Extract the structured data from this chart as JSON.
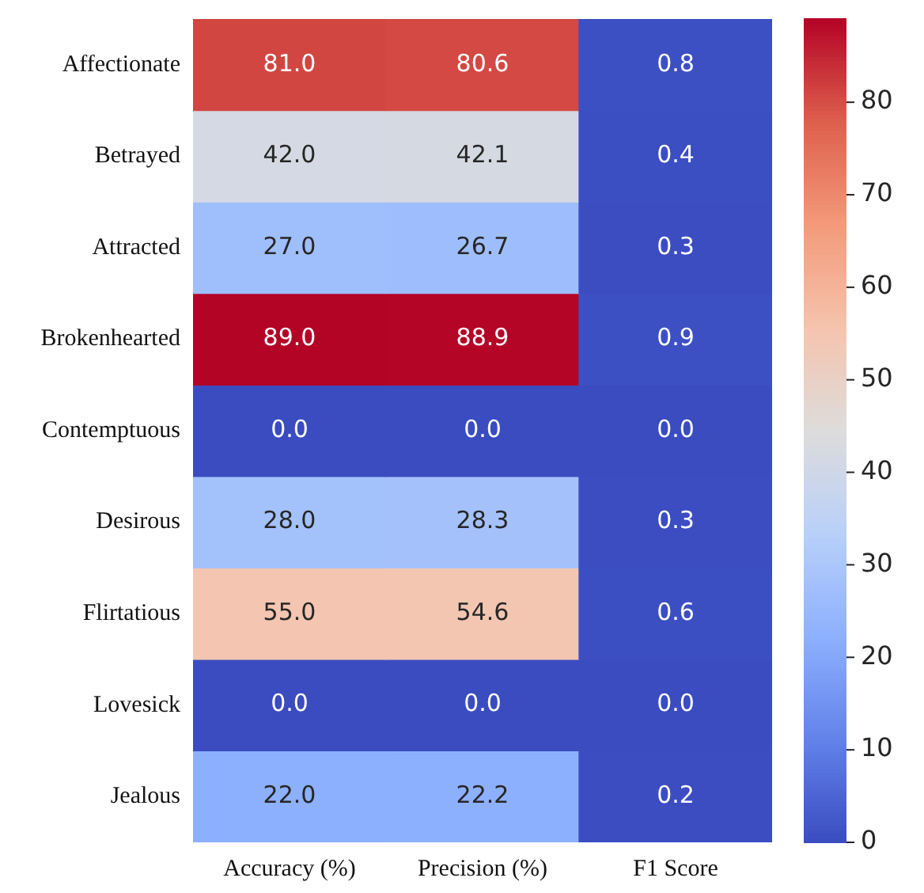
{
  "chart_data": {
    "type": "heatmap",
    "categories": [
      "Accuracy (%)",
      "Precision (%)",
      "F1 Score"
    ],
    "y_categories": [
      "Affectionate",
      "Betrayed",
      "Attracted",
      "Brokenhearted",
      "Contemptuous",
      "Desirous",
      "Flirtatious",
      "Lovesick",
      "Jealous"
    ],
    "cells": [
      [
        81.0,
        80.6,
        0.8
      ],
      [
        42.0,
        42.1,
        0.4
      ],
      [
        27.0,
        26.7,
        0.3
      ],
      [
        89.0,
        88.9,
        0.9
      ],
      [
        0.0,
        0.0,
        0.0
      ],
      [
        28.0,
        28.3,
        0.3
      ],
      [
        55.0,
        54.6,
        0.6
      ],
      [
        0.0,
        0.0,
        0.0
      ],
      [
        22.0,
        22.2,
        0.2
      ]
    ],
    "cell_labels": [
      [
        "81.0",
        "80.6",
        "0.8"
      ],
      [
        "42.0",
        "42.1",
        "0.4"
      ],
      [
        "27.0",
        "26.7",
        "0.3"
      ],
      [
        "89.0",
        "88.9",
        "0.9"
      ],
      [
        "0.0",
        "0.0",
        "0.0"
      ],
      [
        "28.0",
        "28.3",
        "0.3"
      ],
      [
        "55.0",
        "54.6",
        "0.6"
      ],
      [
        "0.0",
        "0.0",
        "0.0"
      ],
      [
        "22.0",
        "22.2",
        "0.2"
      ]
    ],
    "clim": [
      0,
      89
    ],
    "cticks": [
      0,
      10,
      20,
      30,
      40,
      50,
      60,
      70,
      80
    ]
  }
}
